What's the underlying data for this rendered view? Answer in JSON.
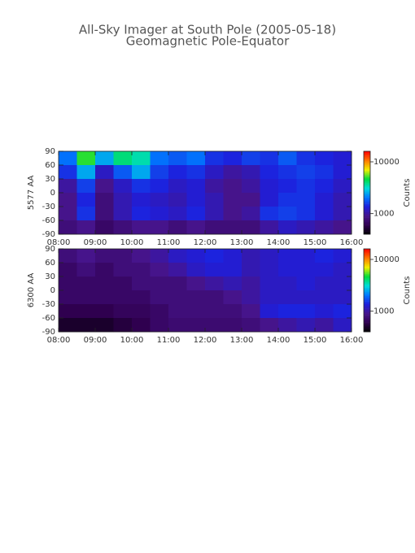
{
  "chart_data": [
    {
      "type": "heatmap",
      "title": "All-Sky Imager at South Pole (2005-05-18)",
      "subtitle": "Geomagnetic Pole-Equator",
      "ylabel": "5577 AA",
      "xlim": [
        8,
        16
      ],
      "xticks": [
        {
          "value": 8,
          "label": "08:00"
        },
        {
          "value": 9,
          "label": "09:00"
        },
        {
          "value": 10,
          "label": "10:00"
        },
        {
          "value": 11,
          "label": "11:00"
        },
        {
          "value": 12,
          "label": "12:00"
        },
        {
          "value": 13,
          "label": "13:00"
        },
        {
          "value": 14,
          "label": "14:00"
        },
        {
          "value": 15,
          "label": "15:00"
        },
        {
          "value": 16,
          "label": "16:00"
        }
      ],
      "ylim": [
        -90,
        90
      ],
      "yticks": [
        -90,
        -60,
        -30,
        0,
        30,
        60,
        90
      ],
      "x": [
        8.25,
        8.75,
        9.25,
        9.75,
        10.25,
        10.75,
        11.25,
        11.75,
        12.25,
        12.75,
        13.25,
        13.75,
        14.25,
        14.75,
        15.25,
        15.75
      ],
      "y": [
        75,
        45,
        15,
        -15,
        -45,
        -75
      ],
      "z": [
        [
          2000,
          5000,
          2500,
          4000,
          3500,
          2000,
          1800,
          2000,
          1500,
          1400,
          1600,
          1500,
          1800,
          1500,
          1400,
          1300
        ],
        [
          1500,
          2500,
          1200,
          1800,
          2500,
          1600,
          1400,
          1500,
          1200,
          1000,
          1100,
          1400,
          1500,
          1600,
          1500,
          1300
        ],
        [
          1000,
          1600,
          900,
          1200,
          1500,
          1400,
          1200,
          1300,
          1000,
          900,
          1000,
          1300,
          1400,
          1500,
          1400,
          1200
        ],
        [
          900,
          1400,
          800,
          1100,
          1300,
          1200,
          1100,
          1300,
          1100,
          900,
          900,
          1300,
          1500,
          1500,
          1300,
          1100
        ],
        [
          900,
          1500,
          800,
          1100,
          1400,
          1300,
          1200,
          1400,
          1100,
          900,
          1000,
          1500,
          1600,
          1500,
          1300,
          1100
        ],
        [
          800,
          900,
          700,
          800,
          900,
          900,
          800,
          900,
          800,
          800,
          800,
          1000,
          1200,
          1100,
          1000,
          900
        ]
      ],
      "colorbar": {
        "label": "Counts",
        "log": true,
        "lim": [
          400,
          16000
        ],
        "ticks": [
          1000,
          10000
        ]
      },
      "colormap": [
        "#000000",
        "#300050",
        "#46148c",
        "#1e1edc",
        "#0078ff",
        "#00dcdc",
        "#00dc3c",
        "#f0f000",
        "#ff7800",
        "#ff0000"
      ]
    },
    {
      "type": "heatmap",
      "ylabel": "6300 AA",
      "xlim": [
        8,
        16
      ],
      "xticks": [
        {
          "value": 8,
          "label": "08:00"
        },
        {
          "value": 9,
          "label": "09:00"
        },
        {
          "value": 10,
          "label": "10:00"
        },
        {
          "value": 11,
          "label": "11:00"
        },
        {
          "value": 12,
          "label": "12:00"
        },
        {
          "value": 13,
          "label": "13:00"
        },
        {
          "value": 14,
          "label": "14:00"
        },
        {
          "value": 15,
          "label": "15:00"
        },
        {
          "value": 16,
          "label": "16:00"
        }
      ],
      "ylim": [
        -90,
        90
      ],
      "yticks": [
        -90,
        -60,
        -30,
        0,
        30,
        60,
        90
      ],
      "x": [
        8.25,
        8.75,
        9.25,
        9.75,
        10.25,
        10.75,
        11.25,
        11.75,
        12.25,
        12.75,
        13.25,
        13.75,
        14.25,
        14.75,
        15.25,
        15.75
      ],
      "y": [
        75,
        45,
        15,
        -15,
        -45,
        -75
      ],
      "z": [
        [
          800,
          900,
          800,
          800,
          900,
          1000,
          1200,
          1300,
          1400,
          1300,
          1100,
          1200,
          1300,
          1300,
          1400,
          1300
        ],
        [
          700,
          800,
          700,
          800,
          800,
          900,
          1000,
          1200,
          1300,
          1300,
          1100,
          1200,
          1300,
          1300,
          1300,
          1200
        ],
        [
          700,
          700,
          700,
          700,
          800,
          800,
          800,
          900,
          1000,
          1100,
          1000,
          1200,
          1200,
          1300,
          1200,
          1200
        ],
        [
          700,
          700,
          700,
          700,
          700,
          800,
          800,
          800,
          800,
          900,
          1000,
          1200,
          1200,
          1200,
          1200,
          1200
        ],
        [
          600,
          600,
          600,
          650,
          650,
          700,
          800,
          800,
          800,
          800,
          900,
          1300,
          1400,
          1400,
          1300,
          1400
        ],
        [
          500,
          500,
          500,
          550,
          600,
          700,
          750,
          750,
          750,
          750,
          800,
          900,
          1000,
          1100,
          1000,
          1200
        ]
      ],
      "colorbar": {
        "label": "Counts",
        "log": true,
        "lim": [
          400,
          16000
        ],
        "ticks": [
          1000,
          10000
        ]
      },
      "colormap": [
        "#000000",
        "#300050",
        "#46148c",
        "#1e1edc",
        "#0078ff",
        "#00dcdc",
        "#00dc3c",
        "#f0f000",
        "#ff7800",
        "#ff0000"
      ]
    }
  ]
}
